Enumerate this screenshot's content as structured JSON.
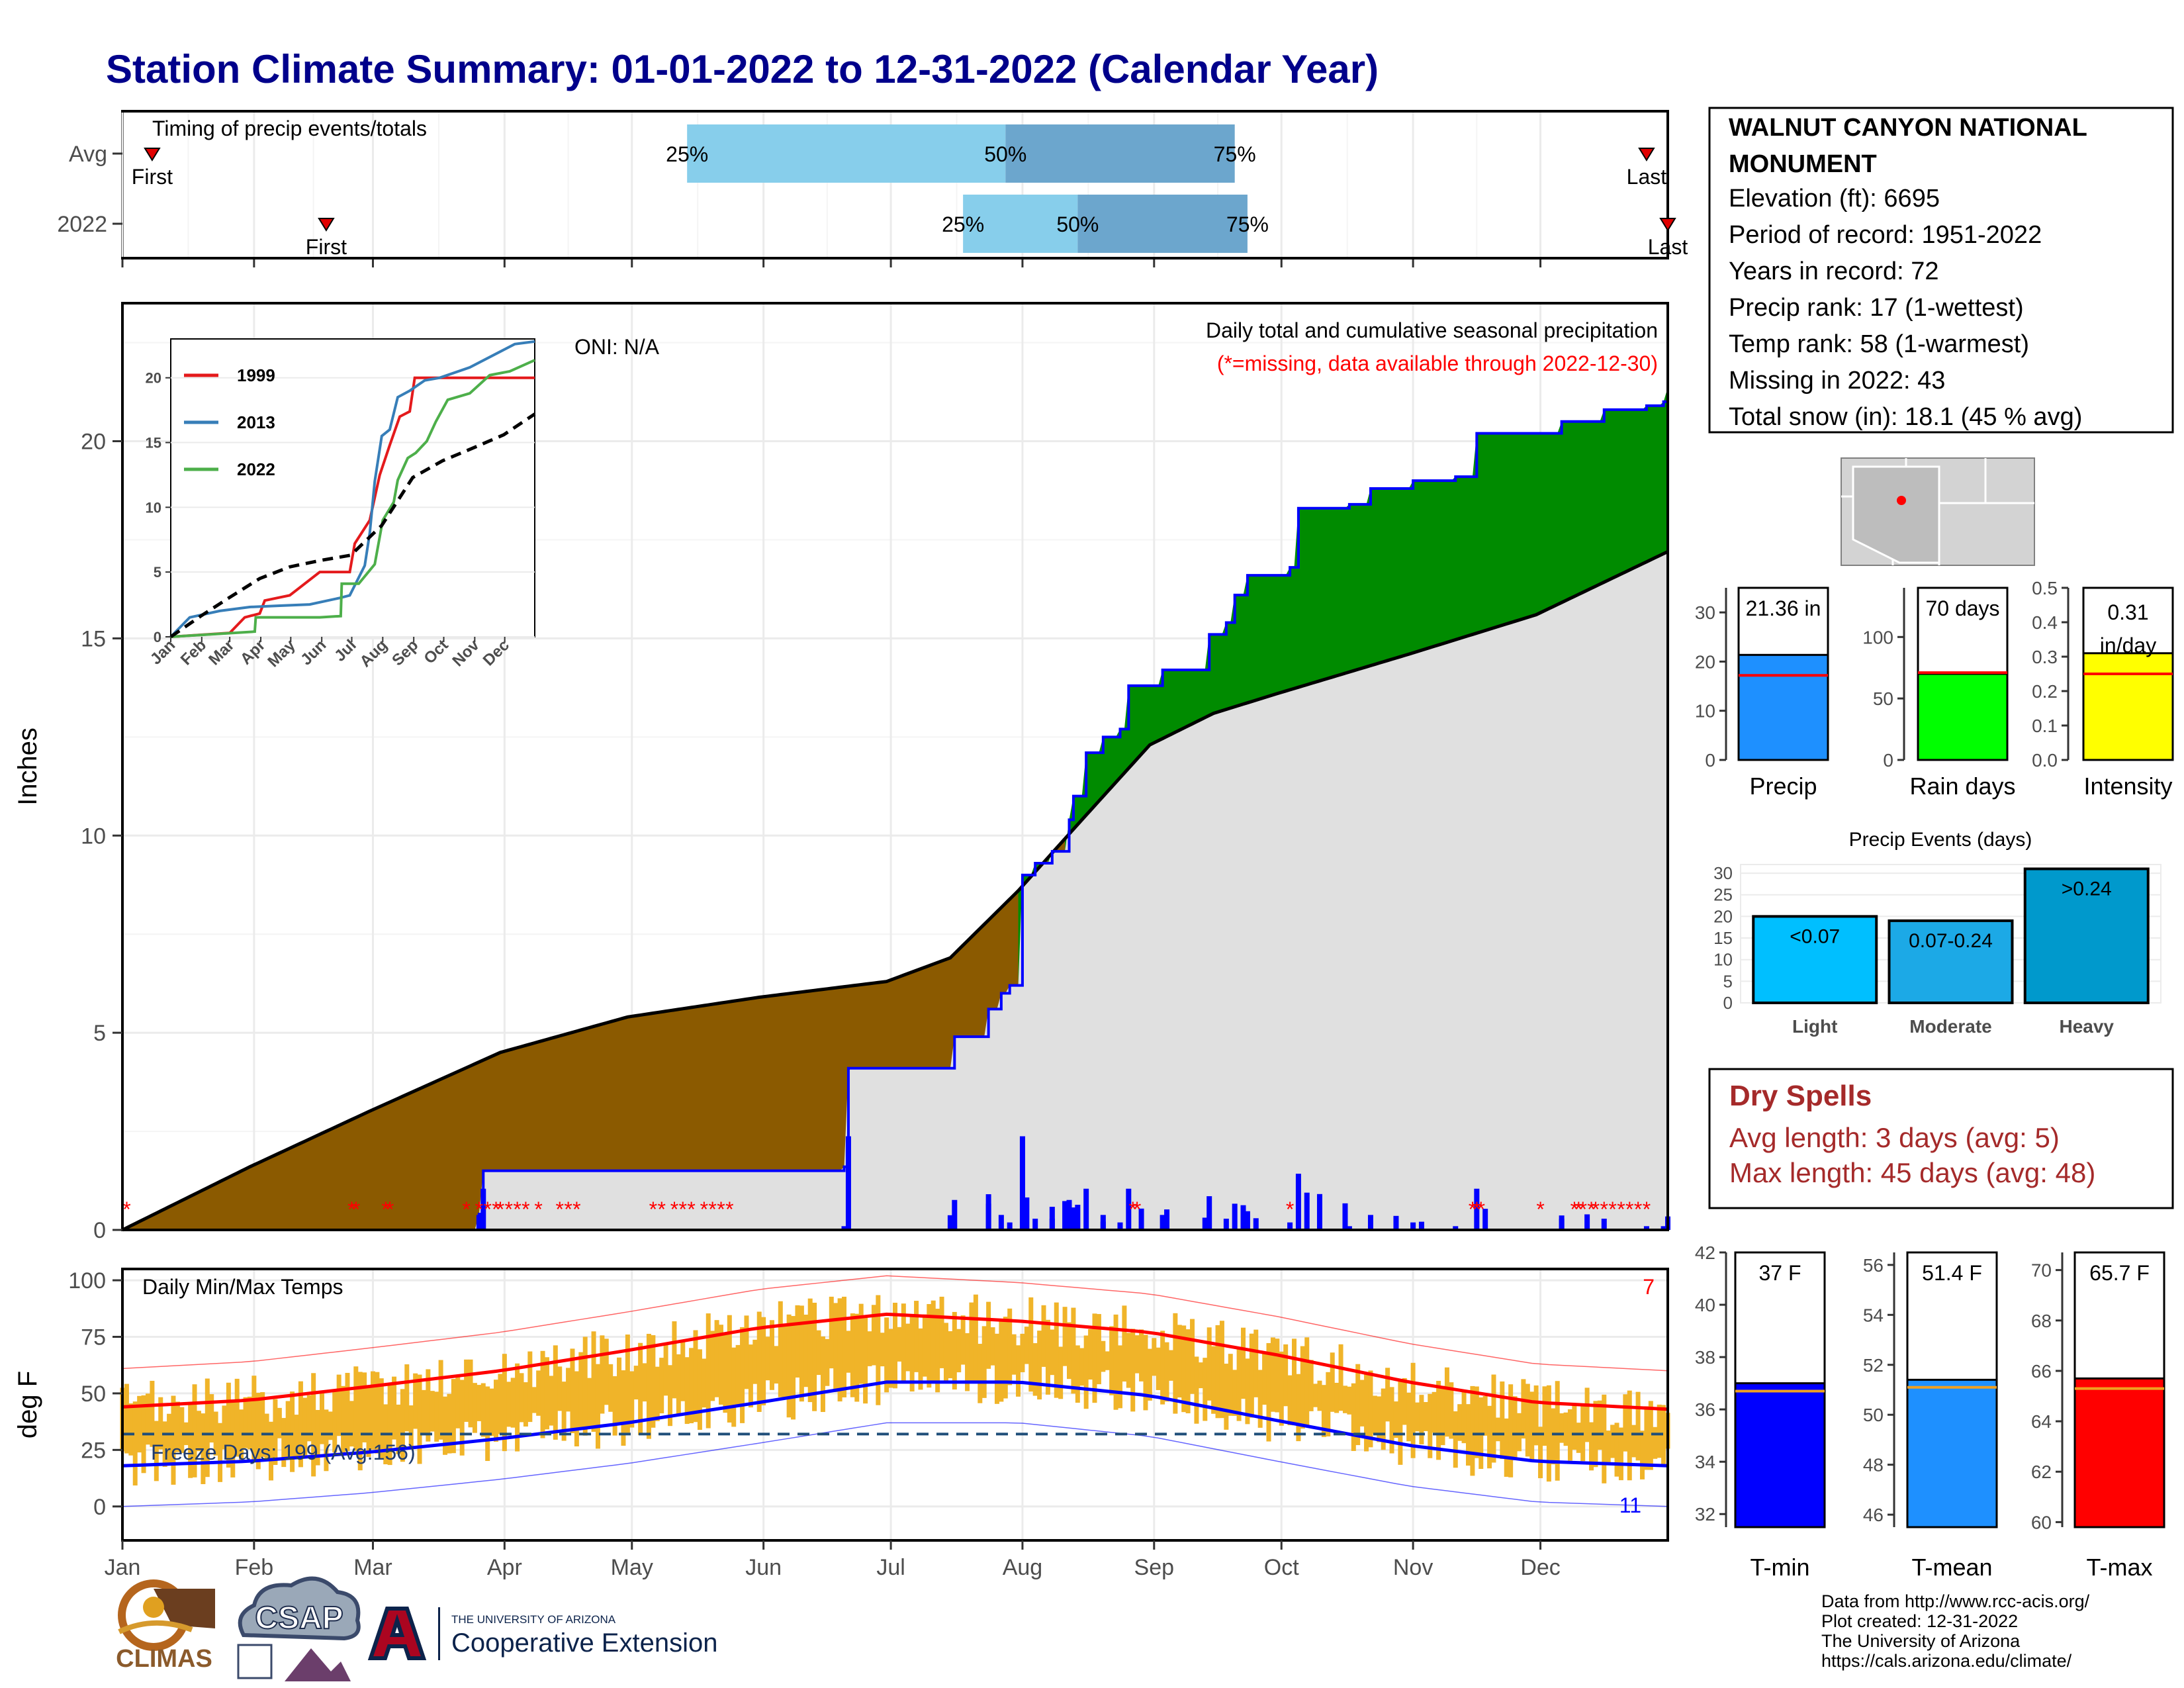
{
  "title": "Station Climate Summary: 01-01-2022 to 12-31-2022 (Calendar Year)",
  "timing_panel": {
    "title": "Timing of precip events/totals",
    "rows": [
      {
        "label": "Avg",
        "first_label": "First",
        "first_date": "2022-01-08",
        "last_label": "Last",
        "last_date": "2022-12-26",
        "pct_labels": [
          "25%",
          "50%",
          "75%"
        ],
        "q25": "2022-05-14",
        "q50": "2022-07-28",
        "q75": "2022-09-20"
      },
      {
        "label": "2022",
        "first_label": "First",
        "first_date": "2022-02-18",
        "last_label": "Last",
        "last_date": "2022-12-31",
        "pct_labels": [
          "25%",
          "50%",
          "75%"
        ],
        "q25": "2022-07-18",
        "q50": "2022-08-14",
        "q75": "2022-09-23"
      }
    ]
  },
  "station_info": {
    "name": "WALNUT CANYON NATIONAL MONUMENT",
    "lines": [
      "Elevation (ft): 6695",
      "Period of record: 1951-2022",
      "Years in record: 72",
      "Precip rank: 17 (1-wettest)",
      "Temp rank: 58 (1-warmest)",
      "Missing in 2022: 43",
      "Total snow (in): 18.1 (45 % avg)"
    ]
  },
  "locator_map": {
    "region_shape": "arizona-outline",
    "dot_color": "#ff0000"
  },
  "precip_panel": {
    "ylabel": "Inches",
    "oni": "ONI: N/A",
    "caption": "Daily total and cumulative seasonal precipitation",
    "missing_note": "(*=missing, data available through 2022-12-30)",
    "colors": {
      "deficit": "#8b5a00",
      "surplus": "#008b00",
      "normal": "#e0e0e0",
      "line": "#0000ff",
      "missing": "#ff0000"
    }
  },
  "inset": {
    "yticks": [
      "0",
      "5",
      "10",
      "15",
      "20"
    ],
    "xticks": [
      "Jan",
      "Feb",
      "Mar",
      "Apr",
      "May",
      "Jun",
      "Jul",
      "Aug",
      "Sep",
      "Oct",
      "Nov",
      "Dec"
    ],
    "legend": [
      {
        "name": "1999",
        "color": "#e41a1c"
      },
      {
        "name": "2013",
        "color": "#377eb8"
      },
      {
        "name": "2022",
        "color": "#4daf4a"
      }
    ]
  },
  "temp_panel": {
    "title": "Daily Min/Max Temps",
    "ylabel": "deg F",
    "freeze_days": "Freeze Days: 199 (Avg:156)",
    "count_top": "7",
    "count_bottom": "11",
    "colors": {
      "bar": "#f0b429",
      "max_line": "#ff0000",
      "min_line": "#0000ff"
    }
  },
  "months": [
    "Jan",
    "Feb",
    "Mar",
    "Apr",
    "May",
    "Jun",
    "Jul",
    "Aug",
    "Sep",
    "Oct",
    "Nov",
    "Dec"
  ],
  "mini_charts": [
    {
      "label": "Precip",
      "value_text": "21.36 in",
      "value": 21.36,
      "avg": 17.2,
      "ymax": 35,
      "ticks": [
        "0",
        "10",
        "20",
        "30"
      ],
      "tick_values": [
        0,
        10,
        20,
        30
      ],
      "color": "#1e90ff"
    },
    {
      "label": "Rain days",
      "value_text": "70 days",
      "value": 70,
      "avg": 71,
      "ymax": 140,
      "ticks": [
        "0",
        "50",
        "100"
      ],
      "tick_values": [
        0,
        50,
        100
      ],
      "color": "#00ff00"
    },
    {
      "label": "Intensity",
      "value_text": "0.31 in/day",
      "value": 0.31,
      "avg": 0.25,
      "ymax": 0.5,
      "ticks": [
        "0.0",
        "0.1",
        "0.2",
        "0.3",
        "0.4",
        "0.5"
      ],
      "tick_values": [
        0,
        0.1,
        0.2,
        0.3,
        0.4,
        0.5
      ],
      "color": "#ffff00"
    }
  ],
  "precip_events": {
    "title": "Precip Events (days)",
    "yticks": [
      "0",
      "5",
      "10",
      "15",
      "20",
      "25",
      "30"
    ],
    "bars": [
      {
        "name": "Light",
        "label": "<0.07",
        "value": 20,
        "color": "#00bfff"
      },
      {
        "name": "Moderate",
        "label": "0.07-0.24",
        "value": 19,
        "color": "#1ca9e6"
      },
      {
        "name": "Heavy",
        "label": ">0.24",
        "value": 31,
        "color": "#0099cc"
      }
    ]
  },
  "dry_spells": {
    "title": "Dry Spells",
    "avg_length": "Avg length: 3 days (avg: 5)",
    "max_length": "Max length: 45 days (avg: 48)"
  },
  "temp_charts": [
    {
      "label": "T-min",
      "value_text": "37 F",
      "value": 37,
      "avg": 36.7,
      "ymin": 31.5,
      "ymax": 42,
      "ticks": [
        "32",
        "34",
        "36",
        "38",
        "40",
        "42"
      ],
      "tick_values": [
        32,
        34,
        36,
        38,
        40,
        42
      ],
      "color": "#0000ff"
    },
    {
      "label": "T-mean",
      "value_text": "51.4 F",
      "value": 51.4,
      "avg": 51.1,
      "ymin": 45.5,
      "ymax": 56.5,
      "ticks": [
        "46",
        "48",
        "50",
        "52",
        "54",
        "56"
      ],
      "tick_values": [
        46,
        48,
        50,
        52,
        54,
        56
      ],
      "color": "#1e90ff"
    },
    {
      "label": "T-max",
      "value_text": "65.7 F",
      "value": 65.7,
      "avg": 65.3,
      "ymin": 59.8,
      "ymax": 70.7,
      "ticks": [
        "60",
        "62",
        "64",
        "66",
        "68",
        "70"
      ],
      "tick_values": [
        60,
        62,
        64,
        66,
        68,
        70
      ],
      "color": "#ff0000"
    }
  ],
  "logos": {
    "climas": "CLIMAS",
    "csap": "CSAP",
    "ua_small": "THE UNIVERSITY OF ARIZONA",
    "ua_big": "Cooperative Extension"
  },
  "credits": [
    "Data from http://www.rcc-acis.org/",
    "Plot created: 12-31-2022",
    "The University of Arizona",
    "https://cals.arizona.edu/climate/"
  ],
  "chart_data": [
    {
      "type": "area",
      "title": "Daily total and cumulative seasonal precipitation",
      "ylabel": "Inches",
      "ylim": [
        0,
        23.5
      ],
      "yticks": [
        0,
        5,
        10,
        15,
        20
      ],
      "x_unit": "day of year",
      "xlim": [
        1,
        365
      ],
      "series": [
        {
          "name": "2022 cumulative",
          "x": [
            1,
            85,
            86,
            150,
            171,
            172,
            189,
            197,
            205,
            208,
            210,
            213,
            216,
            220,
            224,
            225,
            228,
            232,
            236,
            238,
            243,
            244,
            246,
            256,
            257,
            261,
            263,
            266,
            276,
            278,
            281,
            290,
            295,
            305,
            315,
            320,
            330,
            340,
            350,
            360,
            364,
            365
          ],
          "y": [
            0,
            0.4,
            1.5,
            1.5,
            1.6,
            4.1,
            4.1,
            4.9,
            5.6,
            6.0,
            6.2,
            9.0,
            9.3,
            9.6,
            10.4,
            11.0,
            12.1,
            12.5,
            12.7,
            13.8,
            13.8,
            13.8,
            14.2,
            14.2,
            15.1,
            15.4,
            16.1,
            16.6,
            16.8,
            18.3,
            18.3,
            18.4,
            18.8,
            19.0,
            19.1,
            20.2,
            20.2,
            20.5,
            20.8,
            20.9,
            21.0,
            21.36
          ]
        },
        {
          "name": "average cumulative",
          "x": [
            1,
            31,
            59,
            90,
            120,
            151,
            181,
            196,
            212,
            227,
            243,
            258,
            273,
            304,
            334,
            365
          ],
          "y": [
            0,
            1.6,
            3.0,
            4.5,
            5.4,
            5.9,
            6.3,
            6.9,
            8.6,
            10.4,
            12.3,
            13.1,
            13.6,
            14.6,
            15.6,
            17.2
          ]
        }
      ]
    },
    {
      "type": "line",
      "title": "",
      "xlabel": "",
      "ylabel": "",
      "x_unit": "day of year",
      "xlim": [
        1,
        365
      ],
      "ylim": [
        0,
        23
      ],
      "series": [
        {
          "name": "1999",
          "x": [
            1,
            60,
            75,
            90,
            95,
            120,
            150,
            180,
            185,
            200,
            210,
            220,
            230,
            240,
            245,
            250,
            365
          ],
          "y": [
            0,
            0.3,
            1.5,
            1.8,
            2.8,
            3.2,
            5.0,
            5.0,
            7.2,
            9.0,
            12.5,
            14.8,
            17.0,
            17.4,
            20.0,
            20.0,
            20.0
          ]
        },
        {
          "name": "2013",
          "x": [
            1,
            20,
            50,
            80,
            110,
            140,
            170,
            180,
            195,
            200,
            205,
            212,
            220,
            228,
            240,
            255,
            270,
            300,
            330,
            345,
            365
          ],
          "y": [
            0,
            1.5,
            2.0,
            2.3,
            2.4,
            2.5,
            3.0,
            3.2,
            5.5,
            8.0,
            12.0,
            15.5,
            16.0,
            18.5,
            19.0,
            19.8,
            20.0,
            20.8,
            22.0,
            22.6,
            22.8
          ]
        },
        {
          "name": "2022",
          "x": [
            1,
            85,
            86,
            150,
            171,
            172,
            189,
            205,
            213,
            224,
            228,
            238,
            246,
            257,
            266,
            278,
            300,
            320,
            340,
            365
          ],
          "y": [
            0,
            0.4,
            1.5,
            1.5,
            1.6,
            4.1,
            4.1,
            5.6,
            9.0,
            10.4,
            12.1,
            13.8,
            14.2,
            15.1,
            16.6,
            18.3,
            18.8,
            20.2,
            20.5,
            21.36
          ]
        },
        {
          "name": "average",
          "x": [
            1,
            31,
            59,
            90,
            120,
            151,
            181,
            212,
            243,
            273,
            304,
            334,
            365
          ],
          "y": [
            0,
            1.6,
            3.0,
            4.5,
            5.4,
            5.9,
            6.3,
            8.6,
            12.3,
            13.6,
            14.6,
            15.6,
            17.2
          ]
        }
      ]
    },
    {
      "type": "bar",
      "title": "Daily Min/Max Temps",
      "ylabel": "deg F",
      "ylim": [
        -15,
        105
      ],
      "yticks": [
        0,
        25,
        50,
        75,
        100
      ],
      "x_unit": "day of year",
      "series": [
        {
          "name": "avg max",
          "x": [
            1,
            31,
            59,
            90,
            120,
            151,
            181,
            212,
            243,
            273,
            304,
            334,
            365
          ],
          "y": [
            44,
            47,
            53,
            60,
            69,
            79,
            85,
            82,
            77,
            67,
            55,
            46,
            43
          ]
        },
        {
          "name": "avg min",
          "x": [
            1,
            31,
            59,
            90,
            120,
            151,
            181,
            212,
            243,
            273,
            304,
            334,
            365
          ],
          "y": [
            18,
            20,
            24,
            30,
            37,
            46,
            55,
            55,
            49,
            38,
            27,
            20,
            18
          ]
        },
        {
          "name": "freeze threshold",
          "x": [
            1,
            365
          ],
          "y": [
            32,
            32
          ]
        }
      ]
    },
    {
      "type": "bar",
      "title": "Precip Events (days)",
      "categories": [
        "Light",
        "Moderate",
        "Heavy"
      ],
      "values": [
        20,
        19,
        31
      ],
      "ylim": [
        0,
        32
      ]
    }
  ]
}
